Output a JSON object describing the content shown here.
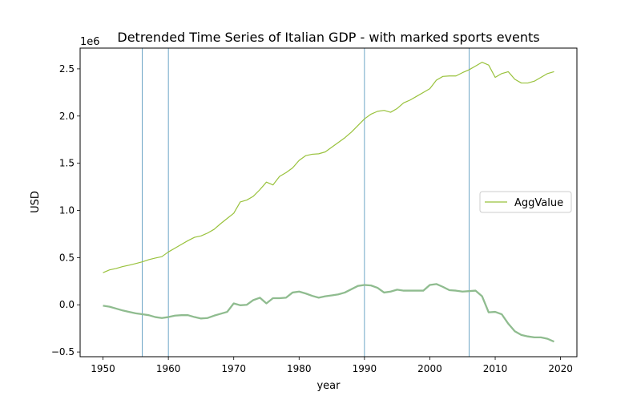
{
  "chart_data": {
    "type": "line",
    "title": "Detrended Time Series of Italian GDP - with marked sports events",
    "xlabel": "year",
    "ylabel": "USD",
    "y_offset_label": "1e6",
    "xlim": [
      1946.5,
      2022.5
    ],
    "ylim": [
      -550000,
      2720000
    ],
    "x_ticks": [
      1950,
      1960,
      1970,
      1980,
      1990,
      2000,
      2010,
      2020
    ],
    "x_tick_labels": [
      "1950",
      "1960",
      "1970",
      "1980",
      "1990",
      "2000",
      "2010",
      "2020"
    ],
    "y_ticks": [
      -500000,
      0,
      500000,
      1000000,
      1500000,
      2000000,
      2500000
    ],
    "y_tick_labels": [
      "−0.5",
      "0.0",
      "0.5",
      "1.0",
      "1.5",
      "2.0",
      "2.5"
    ],
    "grid": false,
    "legend_position": "center right",
    "event_years": [
      1956,
      1960,
      1990,
      2006
    ],
    "event_color": "#4a90b8",
    "series": [
      {
        "name": "AggValue",
        "color": "#99c23c",
        "width": 1.2,
        "x": [
          1950,
          1951,
          1952,
          1953,
          1954,
          1955,
          1956,
          1957,
          1958,
          1959,
          1960,
          1961,
          1962,
          1963,
          1964,
          1965,
          1966,
          1967,
          1968,
          1969,
          1970,
          1971,
          1972,
          1973,
          1974,
          1975,
          1976,
          1977,
          1978,
          1979,
          1980,
          1981,
          1982,
          1983,
          1984,
          1985,
          1986,
          1987,
          1988,
          1989,
          1990,
          1991,
          1992,
          1993,
          1994,
          1995,
          1996,
          1997,
          1998,
          1999,
          2000,
          2001,
          2002,
          2003,
          2004,
          2005,
          2006,
          2007,
          2008,
          2009,
          2010,
          2011,
          2012,
          2013,
          2014,
          2015,
          2016,
          2017,
          2018,
          2019
        ],
        "values": [
          340000,
          370000,
          385000,
          405000,
          420000,
          437000,
          455000,
          478000,
          495000,
          510000,
          560000,
          600000,
          640000,
          680000,
          715000,
          730000,
          760000,
          800000,
          860000,
          915000,
          970000,
          1090000,
          1110000,
          1150000,
          1220000,
          1300000,
          1270000,
          1360000,
          1400000,
          1450000,
          1530000,
          1580000,
          1595000,
          1600000,
          1620000,
          1670000,
          1720000,
          1770000,
          1830000,
          1900000,
          1970000,
          2020000,
          2050000,
          2060000,
          2040000,
          2080000,
          2140000,
          2170000,
          2210000,
          2250000,
          2290000,
          2380000,
          2420000,
          2425000,
          2425000,
          2460000,
          2490000,
          2530000,
          2570000,
          2540000,
          2410000,
          2450000,
          2470000,
          2390000,
          2350000,
          2350000,
          2370000,
          2410000,
          2450000,
          2470000
        ]
      },
      {
        "name": "",
        "color": "#8fbc8f",
        "width": 2.3,
        "x": [
          1950,
          1951,
          1952,
          1953,
          1954,
          1955,
          1956,
          1957,
          1958,
          1959,
          1960,
          1961,
          1962,
          1963,
          1964,
          1965,
          1966,
          1967,
          1968,
          1969,
          1970,
          1971,
          1972,
          1973,
          1974,
          1975,
          1976,
          1977,
          1978,
          1979,
          1980,
          1981,
          1982,
          1983,
          1984,
          1985,
          1986,
          1987,
          1988,
          1989,
          1990,
          1991,
          1992,
          1993,
          1994,
          1995,
          1996,
          1997,
          1998,
          1999,
          2000,
          2001,
          2002,
          2003,
          2004,
          2005,
          2006,
          2007,
          2008,
          2009,
          2010,
          2011,
          2012,
          2013,
          2014,
          2015,
          2016,
          2017,
          2018,
          2019
        ],
        "values": [
          -10000,
          -20000,
          -40000,
          -60000,
          -75000,
          -90000,
          -100000,
          -110000,
          -130000,
          -140000,
          -130000,
          -115000,
          -110000,
          -110000,
          -130000,
          -145000,
          -140000,
          -115000,
          -95000,
          -75000,
          15000,
          -5000,
          0,
          50000,
          75000,
          15000,
          70000,
          70000,
          75000,
          130000,
          140000,
          120000,
          95000,
          75000,
          90000,
          100000,
          110000,
          130000,
          165000,
          200000,
          210000,
          205000,
          180000,
          130000,
          140000,
          160000,
          150000,
          150000,
          150000,
          150000,
          210000,
          220000,
          190000,
          155000,
          150000,
          140000,
          145000,
          150000,
          90000,
          -80000,
          -75000,
          -100000,
          -200000,
          -280000,
          -320000,
          -335000,
          -345000,
          -345000,
          -360000,
          -390000
        ]
      }
    ]
  }
}
